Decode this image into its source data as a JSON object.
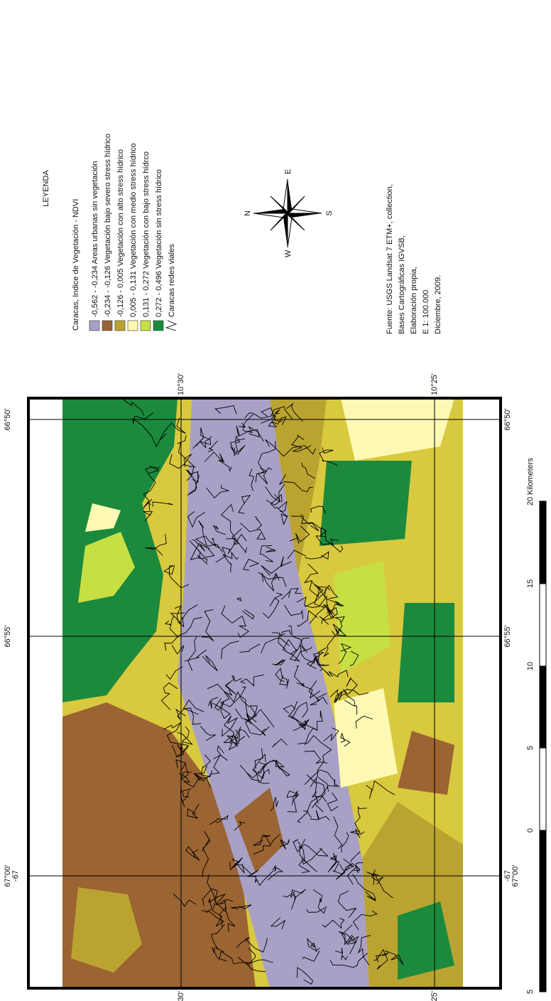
{
  "map": {
    "legend": {
      "title": "LEYENDA",
      "subtitle": "Caracas, Indice de Vegetación - NDVI",
      "items": [
        {
          "label": "-0,562 - -0,234  Areas urbanas sin vegetación",
          "color": "#a9a0c6"
        },
        {
          "label": "-0,234 - -0,126 Vegetación bajo severo stress hídrico",
          "color": "#9b6433"
        },
        {
          "label": "-0,126 - 0,005 Vegetación con alto stress hídrico",
          "color": "#bba332"
        },
        {
          "label": "0,005 - 0,131 Vegetación con medio stress hídrico",
          "color": "#fdf9b4"
        },
        {
          "label": "0,131 - 0,272  Vegetación con bajo stress hídrco",
          "color": "#c6e044"
        },
        {
          "label": "0,272 - 0,496 Vegetación sin stress hídrico",
          "color": "#1c8a3c"
        }
      ],
      "roads": "Caracas redes viales"
    },
    "compass": {
      "north": "N",
      "east": "E",
      "south": "S",
      "west": "W"
    },
    "source": [
      "Fuente: USGS Landsat 7 ETM+, collection,",
      "Bases Cartográficas IGVSB,",
      "Elaboración propia,",
      "E 1: 100.000",
      "Diciembre, 2009."
    ],
    "grid": {
      "longitude": [
        [
          "67°00'",
          "-67"
        ],
        [
          "66°55'"
        ],
        [
          "66°50'"
        ]
      ],
      "latitude": [
        "10°30'",
        "10°25'"
      ]
    },
    "scale": {
      "labels": [
        "5",
        "0",
        "5",
        "10",
        "15",
        "20"
      ],
      "unit": "Kilometers"
    }
  }
}
